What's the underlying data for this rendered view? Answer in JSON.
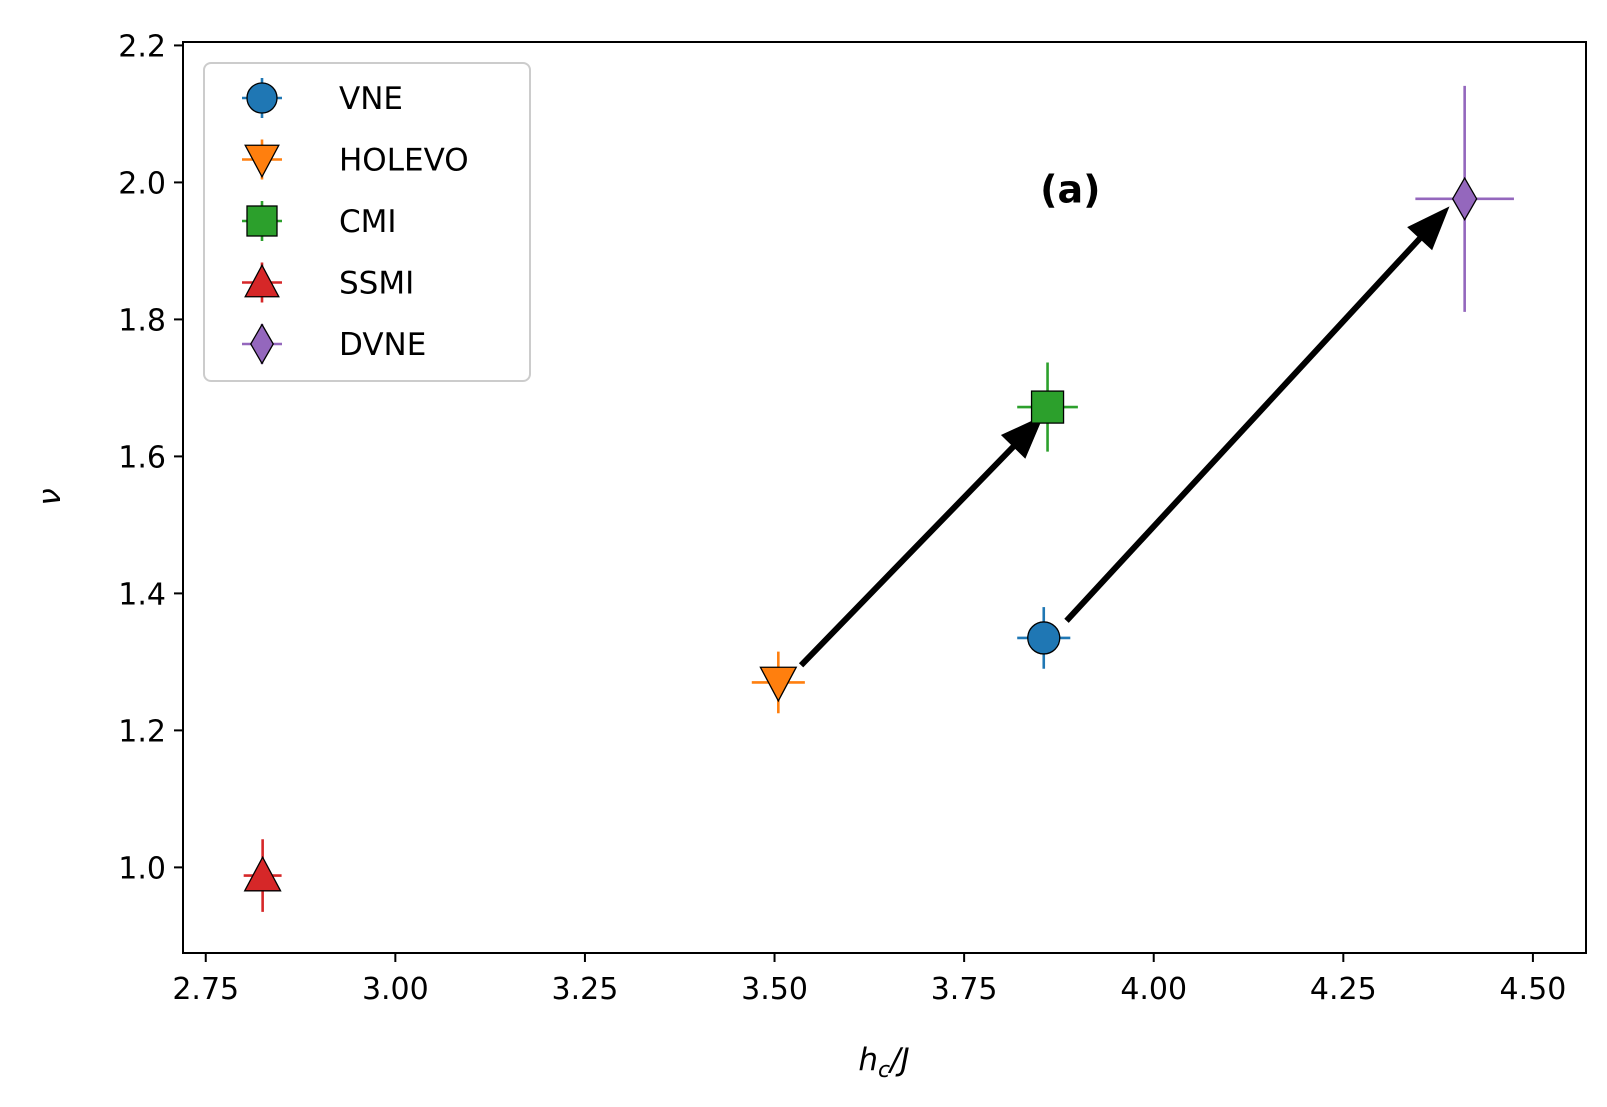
{
  "chart_data": {
    "type": "scatter",
    "title": "",
    "xlabel": "h_c/J",
    "xlabel_main": "h",
    "xlabel_sub": "c",
    "xlabel_rest": "/J",
    "ylabel": "ν",
    "xlim": [
      2.72,
      4.57
    ],
    "ylim": [
      0.875,
      2.205
    ],
    "xticks": [
      2.75,
      3.0,
      3.25,
      3.5,
      3.75,
      4.0,
      4.25,
      4.5
    ],
    "xtick_labels": [
      "2.75",
      "3.00",
      "3.25",
      "3.50",
      "3.75",
      "4.00",
      "4.25",
      "4.50"
    ],
    "yticks": [
      1.0,
      1.2,
      1.4,
      1.6,
      1.8,
      2.0,
      2.2
    ],
    "ytick_labels": [
      "1.0",
      "1.2",
      "1.4",
      "1.6",
      "1.8",
      "2.0",
      "2.2"
    ],
    "grid": false,
    "legend_position": "top-left",
    "series": [
      {
        "name": "VNE",
        "marker": "circle",
        "color": "#1f77b4",
        "x": 3.855,
        "y": 1.335,
        "xerr": 0.035,
        "yerr": 0.045
      },
      {
        "name": "HOLEVO",
        "marker": "triangle-down",
        "color": "#ff7f0e",
        "x": 3.505,
        "y": 1.27,
        "xerr": 0.035,
        "yerr": 0.045
      },
      {
        "name": "CMI",
        "marker": "square",
        "color": "#2ca02c",
        "x": 3.86,
        "y": 1.672,
        "xerr": 0.04,
        "yerr": 0.065
      },
      {
        "name": "SSMI",
        "marker": "triangle-up",
        "color": "#d62728",
        "x": 2.825,
        "y": 0.988,
        "xerr": 0.025,
        "yerr": 0.053
      },
      {
        "name": "DVNE",
        "marker": "diamond",
        "color": "#9467bd",
        "x": 4.41,
        "y": 1.976,
        "xerr": 0.065,
        "yerr": 0.165
      }
    ],
    "arrows": [
      {
        "from": [
          3.535,
          1.295
        ],
        "to": [
          3.855,
          1.66
        ]
      },
      {
        "from": [
          3.885,
          1.36
        ],
        "to": [
          4.39,
          1.965
        ]
      }
    ],
    "annotations": [
      {
        "text": "(a)",
        "x": 3.89,
        "y": 1.99
      }
    ]
  }
}
